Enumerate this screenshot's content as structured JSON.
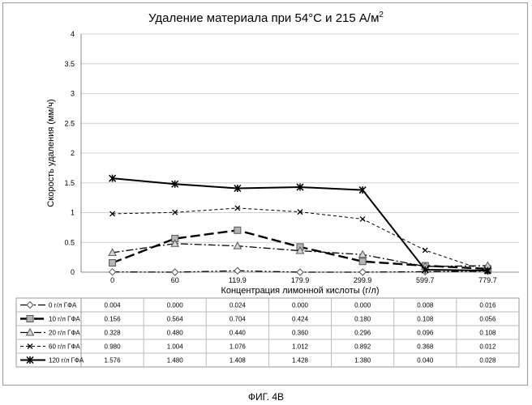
{
  "figure_caption": "ФИГ. 4В",
  "chart_data": {
    "type": "line",
    "title": "Удаление материала при 54°С и 215 А/м",
    "title_superscript": "2",
    "xlabel": "Концентрация лимонной кислоты (г/л)",
    "ylabel": "Скорость удаления (мм/ч)",
    "categories": [
      "0",
      "60",
      "119.9",
      "179.9",
      "299.9",
      "599.7",
      "779.7"
    ],
    "ylim": [
      0,
      4
    ],
    "yticks": [
      "0",
      "0.5",
      "1",
      "1.5",
      "2",
      "2.5",
      "3",
      "3.5",
      "4"
    ],
    "grid": true,
    "legend": "data-table-below",
    "series": [
      {
        "name": "0 г/л ГФА",
        "values": [
          0.004,
          0.0,
          0.024,
          0.0,
          0.0,
          0.008,
          0.016
        ],
        "labels": [
          "0.004",
          "0.000",
          "0.024",
          "0.000",
          "0.000",
          "0.008",
          "0.016"
        ],
        "color": "#000000",
        "dash": "9 3 2 3 2 3",
        "width": 1.3,
        "marker": "diamond"
      },
      {
        "name": "10 г/л ГФА",
        "values": [
          0.156,
          0.564,
          0.704,
          0.424,
          0.18,
          0.108,
          0.056
        ],
        "labels": [
          "0.156",
          "0.564",
          "0.704",
          "0.424",
          "0.180",
          "0.108",
          "0.056"
        ],
        "color": "#000000",
        "dash": "12 5",
        "width": 2.4,
        "marker": "square"
      },
      {
        "name": "20 г/л ГФА",
        "values": [
          0.328,
          0.48,
          0.44,
          0.36,
          0.296,
          0.096,
          0.108
        ],
        "labels": [
          "0.328",
          "0.480",
          "0.440",
          "0.360",
          "0.296",
          "0.096",
          "0.108"
        ],
        "color": "#000000",
        "dash": "9 3 2 3",
        "width": 1.3,
        "marker": "triangle"
      },
      {
        "name": "60 г/л ГФА",
        "values": [
          0.98,
          1.004,
          1.076,
          1.012,
          0.892,
          0.368,
          0.012
        ],
        "labels": [
          "0.980",
          "1.004",
          "1.076",
          "1.012",
          "0.892",
          "0.368",
          "0.012"
        ],
        "color": "#000000",
        "dash": "4 3",
        "width": 1.0,
        "marker": "x"
      },
      {
        "name": "120 г/л ГФА",
        "values": [
          1.576,
          1.48,
          1.408,
          1.428,
          1.38,
          0.04,
          0.028
        ],
        "labels": [
          "1.576",
          "1.480",
          "1.408",
          "1.428",
          "1.380",
          "0.040",
          "0.028"
        ],
        "color": "#000000",
        "dash": "",
        "width": 2.0,
        "marker": "star"
      }
    ]
  }
}
